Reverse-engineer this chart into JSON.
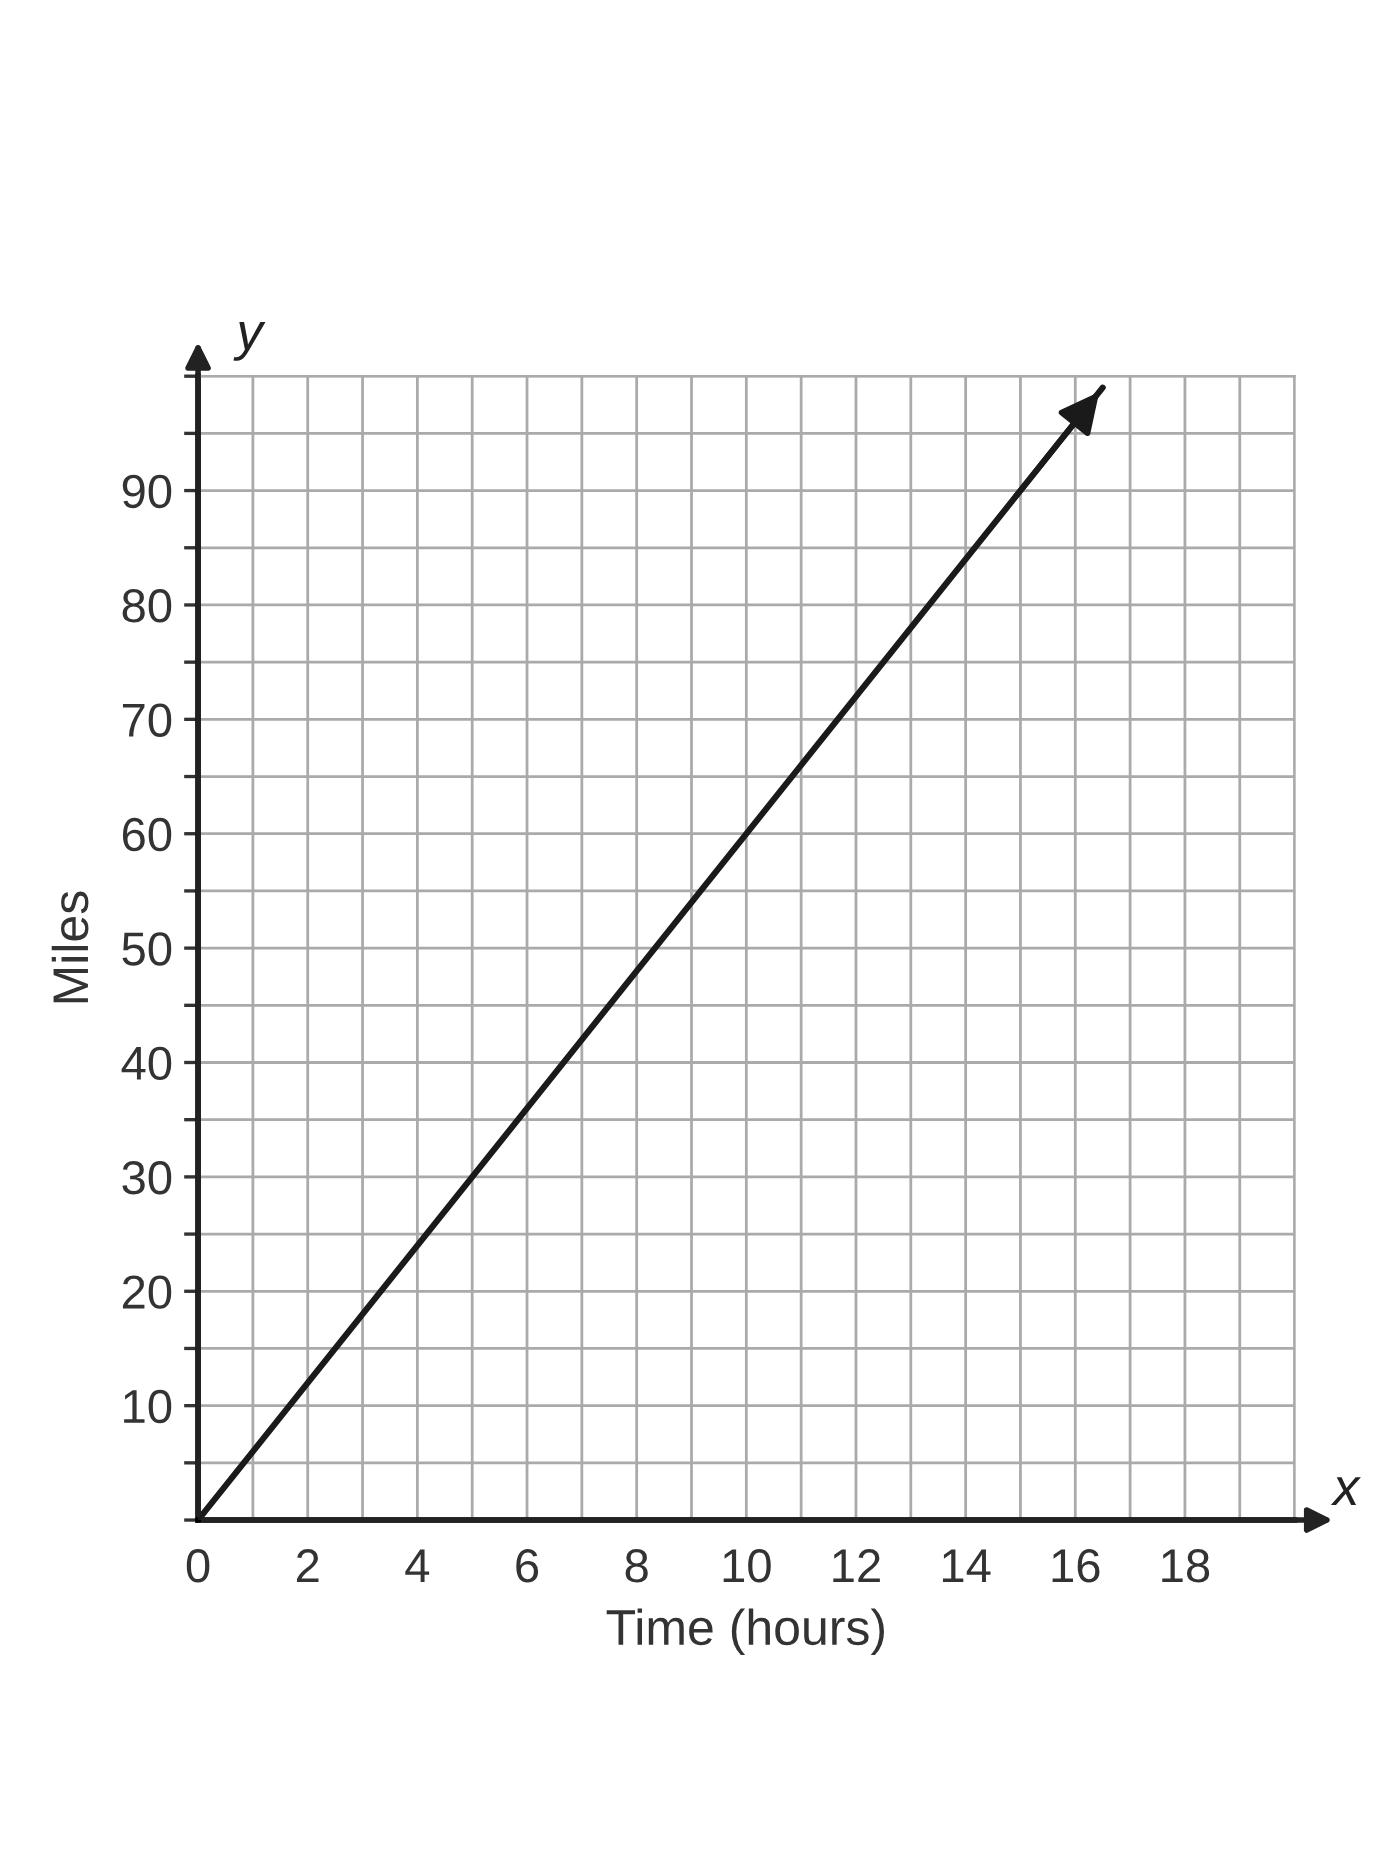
{
  "chart_data": {
    "type": "line",
    "xlabel": "Time (hours)",
    "ylabel": "Miles",
    "x": [
      0,
      16.5
    ],
    "series": [
      {
        "color": "#1a1a1a",
        "values": [
          0,
          99
        ]
      }
    ],
    "annotations": [
      "x",
      "y"
    ],
    "xlim": [
      0,
      20
    ],
    "ylim": [
      0,
      100
    ],
    "xticks": [
      0,
      {
        "value": 1,
        "label": null
      },
      2,
      {
        "value": 3,
        "label": null
      },
      4,
      {
        "value": 5,
        "label": null
      },
      6,
      {
        "value": 7,
        "label": null
      },
      8,
      {
        "value": 9,
        "label": null
      },
      10,
      {
        "value": 11,
        "label": null
      },
      12,
      {
        "value": 13,
        "label": null
      },
      14,
      {
        "value": 15,
        "label": null
      },
      16,
      {
        "value": 17,
        "label": null
      },
      18,
      {
        "value": 19,
        "label": null
      },
      {
        "value": 20,
        "label": null
      }
    ],
    "yticks": [
      {
        "value": 0,
        "label": null
      },
      {
        "value": 5,
        "label": null
      },
      10,
      {
        "value": 15,
        "label": null
      },
      20,
      {
        "value": 25,
        "label": null
      },
      30,
      {
        "value": 35,
        "label": null
      },
      40,
      {
        "value": 45,
        "label": null
      },
      50,
      {
        "value": 55,
        "label": null
      },
      60,
      {
        "value": 65,
        "label": null
      },
      70,
      {
        "value": 75,
        "label": null
      },
      80,
      {
        "value": 85,
        "label": null
      },
      90,
      {
        "value": 95,
        "label": null
      },
      {
        "value": 100,
        "label": null
      }
    ],
    "grid": true,
    "marker": "none",
    "line_style": "solid"
  }
}
